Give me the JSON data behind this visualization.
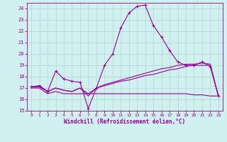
{
  "xlabel": "Windchill (Refroidissement éolien,°C)",
  "bg_color": "#cff0ee",
  "line_color": "#990099",
  "grid_color": "#b0d8d0",
  "xlim": [
    -0.5,
    23.5
  ],
  "ylim": [
    15,
    24.5
  ],
  "yticks": [
    15,
    16,
    17,
    18,
    19,
    20,
    21,
    22,
    23,
    24
  ],
  "xticks": [
    0,
    1,
    2,
    3,
    4,
    5,
    6,
    7,
    8,
    9,
    10,
    11,
    12,
    13,
    14,
    15,
    16,
    17,
    18,
    19,
    20,
    21,
    22,
    23
  ],
  "line1_x": [
    0,
    1,
    2,
    3,
    4,
    5,
    6,
    7,
    8,
    9,
    10,
    11,
    12,
    13,
    14,
    15,
    16,
    17,
    18,
    19,
    20,
    21,
    22,
    23
  ],
  "line1_y": [
    17.1,
    17.2,
    16.7,
    18.5,
    17.8,
    17.6,
    17.5,
    15.2,
    17.0,
    19.0,
    20.0,
    22.3,
    23.6,
    24.2,
    24.3,
    22.5,
    21.5,
    20.3,
    19.3,
    19.0,
    19.0,
    19.3,
    18.9,
    16.3
  ],
  "line2_x": [
    0,
    1,
    2,
    3,
    4,
    5,
    6,
    7,
    8,
    9,
    10,
    11,
    12,
    13,
    14,
    15,
    16,
    17,
    18,
    19,
    20,
    21,
    22,
    23
  ],
  "line2_y": [
    17.1,
    17.2,
    16.7,
    17.0,
    16.8,
    16.7,
    17.0,
    16.5,
    17.0,
    17.3,
    17.5,
    17.7,
    17.9,
    18.1,
    18.3,
    18.5,
    18.7,
    18.8,
    19.0,
    19.1,
    19.1,
    19.2,
    19.1,
    16.3
  ],
  "line3_x": [
    0,
    1,
    2,
    3,
    4,
    5,
    6,
    7,
    8,
    9,
    10,
    11,
    12,
    13,
    14,
    15,
    16,
    17,
    18,
    19,
    20,
    21,
    22,
    23
  ],
  "line3_y": [
    17.1,
    17.1,
    16.7,
    17.0,
    16.8,
    16.7,
    17.0,
    16.3,
    17.0,
    17.2,
    17.4,
    17.6,
    17.7,
    17.9,
    18.1,
    18.2,
    18.4,
    18.6,
    18.7,
    18.9,
    19.0,
    19.0,
    19.0,
    16.3
  ],
  "line4_x": [
    0,
    1,
    2,
    3,
    4,
    5,
    6,
    7,
    8,
    9,
    10,
    11,
    12,
    13,
    14,
    15,
    16,
    17,
    18,
    19,
    20,
    21,
    22,
    23
  ],
  "line4_y": [
    17.0,
    17.0,
    16.5,
    16.7,
    16.5,
    16.5,
    16.5,
    16.5,
    16.5,
    16.5,
    16.5,
    16.5,
    16.5,
    16.5,
    16.5,
    16.5,
    16.5,
    16.5,
    16.5,
    16.5,
    16.4,
    16.4,
    16.3,
    16.3
  ]
}
